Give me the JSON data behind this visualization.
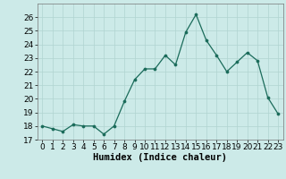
{
  "x": [
    0,
    1,
    2,
    3,
    4,
    5,
    6,
    7,
    8,
    9,
    10,
    11,
    12,
    13,
    14,
    15,
    16,
    17,
    18,
    19,
    20,
    21,
    22,
    23
  ],
  "y": [
    18.0,
    17.8,
    17.6,
    18.1,
    18.0,
    18.0,
    17.4,
    18.0,
    19.8,
    21.4,
    22.2,
    22.2,
    23.2,
    22.5,
    24.9,
    26.2,
    24.3,
    23.2,
    22.0,
    22.7,
    23.4,
    22.8,
    20.1,
    18.9
  ],
  "line_color": "#1a6b5a",
  "marker": "o",
  "marker_size": 2.2,
  "bg_color": "#cceae8",
  "grid_color": "#b0d4d0",
  "xlabel": "Humidex (Indice chaleur)",
  "ylim": [
    17,
    27
  ],
  "xlim": [
    -0.5,
    23.5
  ],
  "yticks": [
    17,
    18,
    19,
    20,
    21,
    22,
    23,
    24,
    25,
    26
  ],
  "xticks": [
    0,
    1,
    2,
    3,
    4,
    5,
    6,
    7,
    8,
    9,
    10,
    11,
    12,
    13,
    14,
    15,
    16,
    17,
    18,
    19,
    20,
    21,
    22,
    23
  ],
  "xlabel_fontsize": 7.5,
  "tick_fontsize": 6.5
}
